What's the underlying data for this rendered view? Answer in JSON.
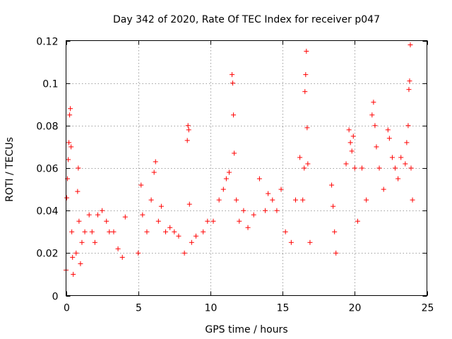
{
  "chart_data": {
    "type": "scatter",
    "title": "Day 342 of 2020, Rate Of TEC Index for receiver p047",
    "xlabel": "GPS time / hours",
    "ylabel": "ROTI / TECUs",
    "xlim": [
      0,
      25
    ],
    "ylim": [
      0,
      0.12
    ],
    "xticks": [
      0,
      5,
      10,
      15,
      20,
      25
    ],
    "xtick_labels": [
      "0",
      "5",
      "10",
      "15",
      "20",
      "25"
    ],
    "yticks": [
      0,
      0.02,
      0.04,
      0.06,
      0.08,
      0.1,
      0.12
    ],
    "ytick_labels": [
      "0",
      "0.02",
      "0.04",
      "0.06",
      "0.08",
      "0.1",
      "0.12"
    ],
    "grid": true,
    "marker": "+",
    "color": "#ff0000",
    "series": [
      {
        "points": [
          [
            0.0,
            0.012
          ],
          [
            0.05,
            0.046
          ],
          [
            0.1,
            0.055
          ],
          [
            0.15,
            0.064
          ],
          [
            0.2,
            0.072
          ],
          [
            0.25,
            0.085
          ],
          [
            0.3,
            0.088
          ],
          [
            0.35,
            0.07
          ],
          [
            0.4,
            0.03
          ],
          [
            0.45,
            0.018
          ],
          [
            0.5,
            0.01
          ],
          [
            0.7,
            0.02
          ],
          [
            0.8,
            0.049
          ],
          [
            0.85,
            0.06
          ],
          [
            0.9,
            0.035
          ],
          [
            1.0,
            0.015
          ],
          [
            1.1,
            0.025
          ],
          [
            1.3,
            0.03
          ],
          [
            1.6,
            0.038
          ],
          [
            1.8,
            0.03
          ],
          [
            2.0,
            0.025
          ],
          [
            2.2,
            0.038
          ],
          [
            2.5,
            0.04
          ],
          [
            2.8,
            0.035
          ],
          [
            3.0,
            0.03
          ],
          [
            3.3,
            0.03
          ],
          [
            3.6,
            0.022
          ],
          [
            3.9,
            0.018
          ],
          [
            4.1,
            0.037
          ],
          [
            5.0,
            0.02
          ],
          [
            5.2,
            0.052
          ],
          [
            5.3,
            0.038
          ],
          [
            5.6,
            0.03
          ],
          [
            5.9,
            0.045
          ],
          [
            6.1,
            0.058
          ],
          [
            6.2,
            0.063
          ],
          [
            6.4,
            0.035
          ],
          [
            6.6,
            0.042
          ],
          [
            6.9,
            0.03
          ],
          [
            7.2,
            0.032
          ],
          [
            7.5,
            0.03
          ],
          [
            7.8,
            0.028
          ],
          [
            8.2,
            0.02
          ],
          [
            8.4,
            0.073
          ],
          [
            8.45,
            0.08
          ],
          [
            8.5,
            0.078
          ],
          [
            8.55,
            0.043
          ],
          [
            8.7,
            0.025
          ],
          [
            9.0,
            0.028
          ],
          [
            9.5,
            0.03
          ],
          [
            9.8,
            0.035
          ],
          [
            10.2,
            0.035
          ],
          [
            10.6,
            0.045
          ],
          [
            10.9,
            0.05
          ],
          [
            11.1,
            0.055
          ],
          [
            11.3,
            0.058
          ],
          [
            11.5,
            0.104
          ],
          [
            11.55,
            0.1
          ],
          [
            11.6,
            0.085
          ],
          [
            11.65,
            0.067
          ],
          [
            11.8,
            0.045
          ],
          [
            12.0,
            0.035
          ],
          [
            12.3,
            0.04
          ],
          [
            12.6,
            0.032
          ],
          [
            13.0,
            0.038
          ],
          [
            13.4,
            0.055
          ],
          [
            13.8,
            0.04
          ],
          [
            14.0,
            0.048
          ],
          [
            14.3,
            0.045
          ],
          [
            14.6,
            0.04
          ],
          [
            14.9,
            0.05
          ],
          [
            15.2,
            0.03
          ],
          [
            15.6,
            0.025
          ],
          [
            15.9,
            0.045
          ],
          [
            16.2,
            0.065
          ],
          [
            16.4,
            0.045
          ],
          [
            16.5,
            0.06
          ],
          [
            16.55,
            0.096
          ],
          [
            16.6,
            0.104
          ],
          [
            16.65,
            0.115
          ],
          [
            16.7,
            0.079
          ],
          [
            16.75,
            0.062
          ],
          [
            16.9,
            0.025
          ],
          [
            18.4,
            0.052
          ],
          [
            18.5,
            0.042
          ],
          [
            18.6,
            0.03
          ],
          [
            18.7,
            0.02
          ],
          [
            19.4,
            0.062
          ],
          [
            19.6,
            0.078
          ],
          [
            19.7,
            0.072
          ],
          [
            19.8,
            0.068
          ],
          [
            19.9,
            0.075
          ],
          [
            20.0,
            0.06
          ],
          [
            20.2,
            0.035
          ],
          [
            20.5,
            0.06
          ],
          [
            20.8,
            0.045
          ],
          [
            21.2,
            0.085
          ],
          [
            21.3,
            0.091
          ],
          [
            21.4,
            0.08
          ],
          [
            21.5,
            0.07
          ],
          [
            21.7,
            0.06
          ],
          [
            22.0,
            0.05
          ],
          [
            22.3,
            0.078
          ],
          [
            22.4,
            0.074
          ],
          [
            22.6,
            0.065
          ],
          [
            22.8,
            0.06
          ],
          [
            23.0,
            0.055
          ],
          [
            23.2,
            0.065
          ],
          [
            23.5,
            0.062
          ],
          [
            23.6,
            0.072
          ],
          [
            23.7,
            0.08
          ],
          [
            23.75,
            0.097
          ],
          [
            23.8,
            0.101
          ],
          [
            23.85,
            0.118
          ],
          [
            23.9,
            0.06
          ],
          [
            24.0,
            0.045
          ]
        ]
      }
    ]
  }
}
